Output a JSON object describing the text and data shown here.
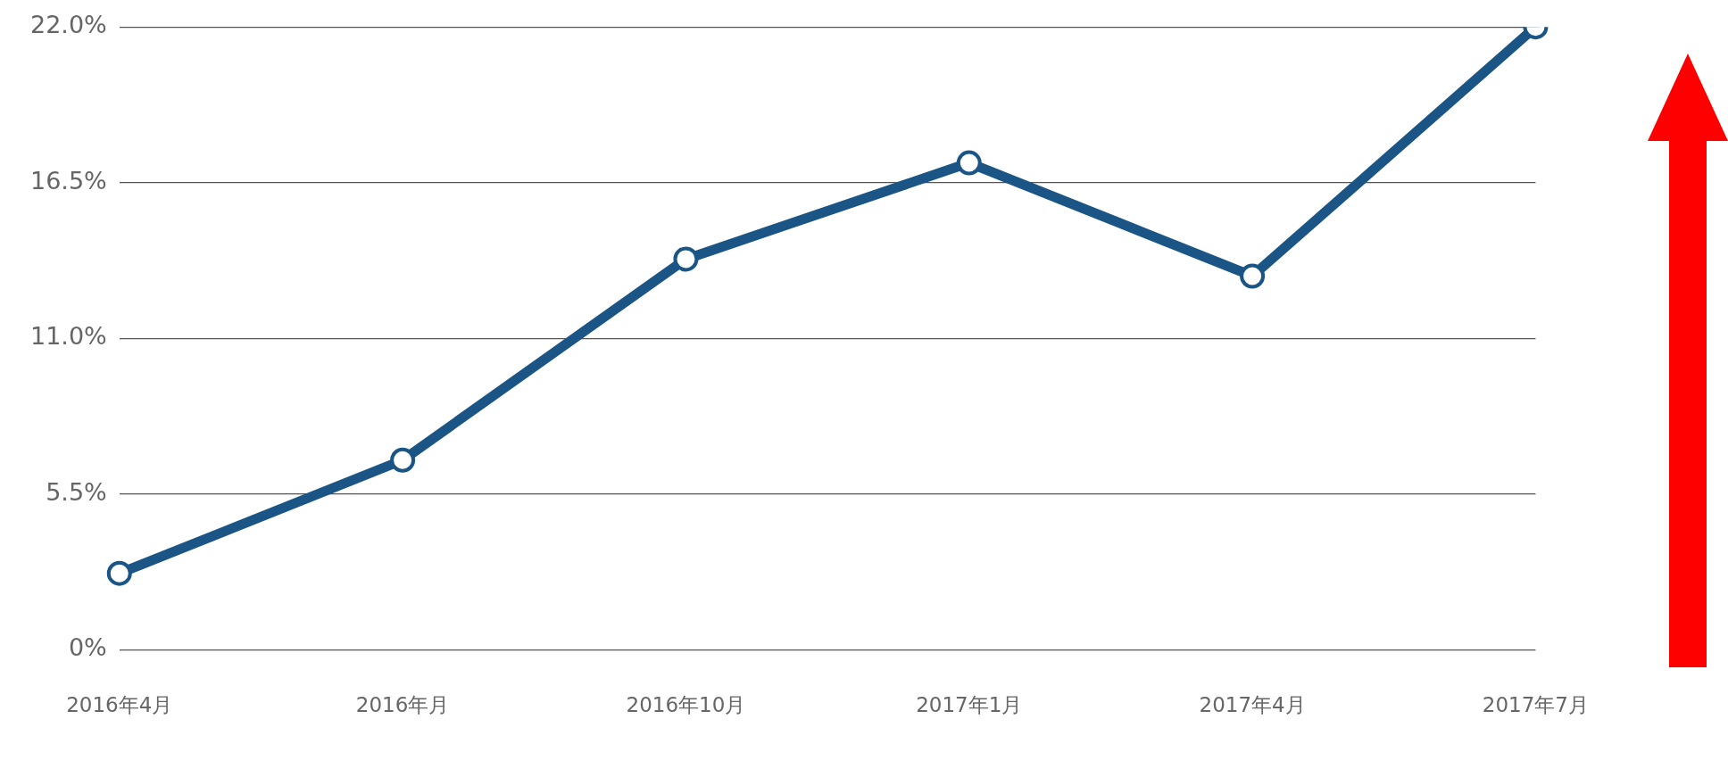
{
  "chart_data": {
    "type": "line",
    "categories": [
      "2016年4月",
      "2016年月",
      "2016年10月",
      "2017年1月",
      "2017年4月",
      "2017年7月"
    ],
    "series": [
      {
        "color": "#1a5585",
        "values": [
          2.7,
          6.7,
          13.8,
          17.2,
          13.2,
          22.0
        ]
      }
    ],
    "ylim": [
      0,
      22
    ],
    "yticks": [
      {
        "value": 0,
        "label": "0%"
      },
      {
        "value": 5.5,
        "label": "5.5%"
      },
      {
        "value": 11,
        "label": "11.0%"
      },
      {
        "value": 16.5,
        "label": "16.5%"
      },
      {
        "value": 22,
        "label": "22.0%"
      }
    ],
    "grid": "y",
    "marker": "circle",
    "line_style": "solid"
  }
}
